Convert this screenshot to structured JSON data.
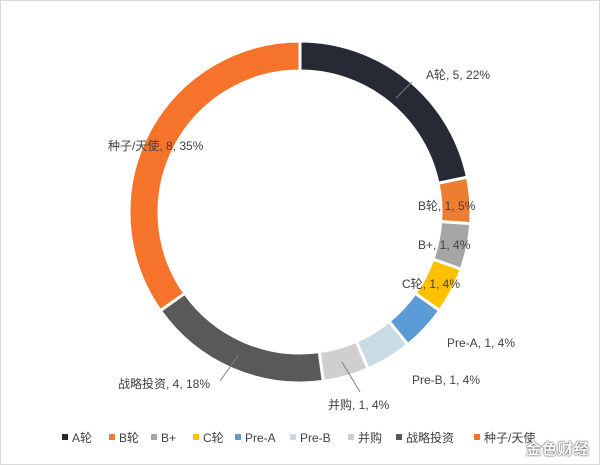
{
  "chart_data": {
    "type": "pie",
    "variant": "donut",
    "start_angle_deg": 0,
    "direction": "clockwise",
    "legend_position": "bottom",
    "slices": [
      {
        "name": "A轮",
        "value": 5,
        "percent": 22,
        "label": "A轮, 5, 22%",
        "color": "#262a35"
      },
      {
        "name": "B轮",
        "value": 1,
        "percent": 5,
        "label": "B轮, 1, 5%",
        "color": "#ed7d31"
      },
      {
        "name": "B+",
        "value": 1,
        "percent": 4,
        "label": "B+, 1, 4%",
        "color": "#a5a5a5"
      },
      {
        "name": "C轮",
        "value": 1,
        "percent": 4,
        "label": "C轮, 1, 4%",
        "color": "#ffc000"
      },
      {
        "name": "Pre-A",
        "value": 1,
        "percent": 4,
        "label": "Pre-A, 1, 4%",
        "color": "#5b9bd5"
      },
      {
        "name": "Pre-B",
        "value": 1,
        "percent": 4,
        "label": "Pre-B, 1, 4%",
        "color": "#c9dce4"
      },
      {
        "name": "并购",
        "value": 1,
        "percent": 4,
        "label": "并购, 1, 4%",
        "color": "#d0cece"
      },
      {
        "name": "战略投资",
        "value": 4,
        "percent": 18,
        "label": "战略投资, 4, 18%",
        "color": "#595959"
      },
      {
        "name": "种子/天使",
        "value": 8,
        "percent": 35,
        "label": "种子/天使, 8, 35%",
        "color": "#f5732a"
      }
    ]
  },
  "watermark": "金色财经"
}
